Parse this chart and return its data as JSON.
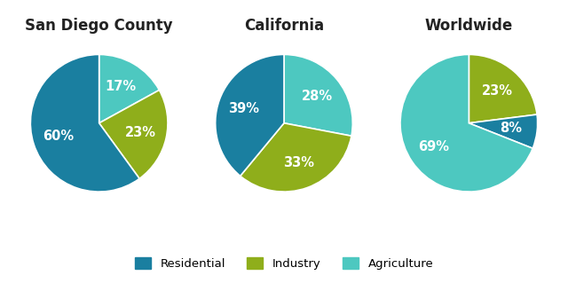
{
  "charts": [
    {
      "title": "San Diego County",
      "values": [
        17,
        23,
        60
      ],
      "colors": [
        "#4dc8c0",
        "#8fae1b",
        "#1a7fa0"
      ],
      "labels": [
        "17%",
        "23%",
        "60%"
      ],
      "startangle": 90,
      "counterclock": false
    },
    {
      "title": "California",
      "values": [
        28,
        33,
        39
      ],
      "colors": [
        "#4dc8c0",
        "#8fae1b",
        "#1a7fa0"
      ],
      "labels": [
        "28%",
        "33%",
        "39%"
      ],
      "startangle": 90,
      "counterclock": false
    },
    {
      "title": "Worldwide",
      "values": [
        23,
        8,
        69
      ],
      "colors": [
        "#8fae1b",
        "#1a7fa0",
        "#4dc8c0"
      ],
      "labels": [
        "23%",
        "8%",
        "69%"
      ],
      "startangle": 90,
      "counterclock": false
    }
  ],
  "legend": [
    {
      "label": "Residential",
      "color": "#1a7fa0"
    },
    {
      "label": "Industry",
      "color": "#8fae1b"
    },
    {
      "label": "Agriculture",
      "color": "#4dc8c0"
    }
  ],
  "bg_color": "#ffffff",
  "title_color": "#222222",
  "title_fontsize": 12,
  "pct_fontsize": 10.5,
  "label_r": 0.62
}
